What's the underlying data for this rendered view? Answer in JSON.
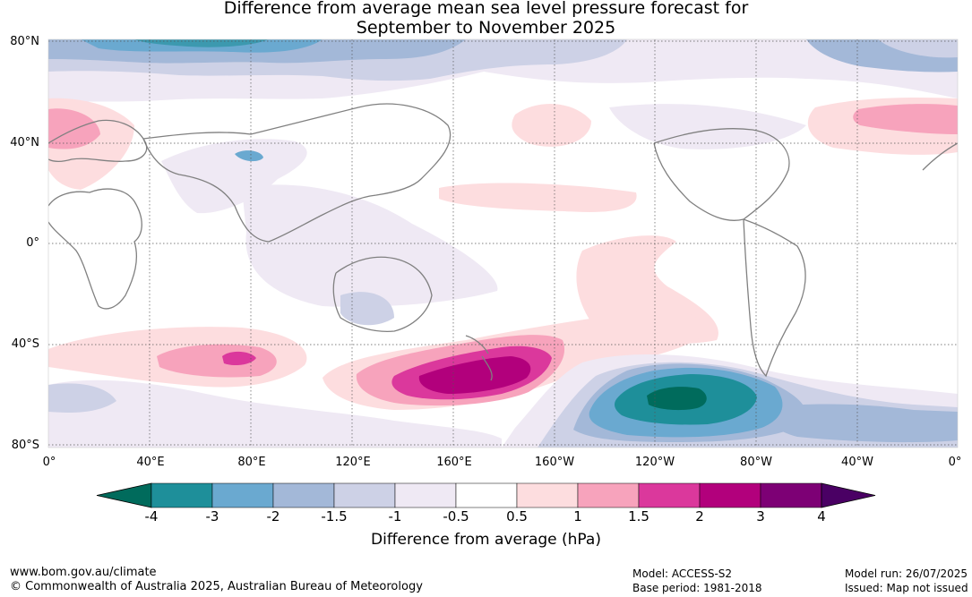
{
  "title": {
    "line1": "Difference from average mean sea level pressure forecast for",
    "line2": "September to November 2025"
  },
  "map": {
    "lat_labels": [
      "80°N",
      "40°N",
      "0°",
      "40°S",
      "80°S"
    ],
    "lon_labels": [
      "0°",
      "40°E",
      "80°E",
      "120°E",
      "160°E",
      "160°W",
      "120°W",
      "80°W",
      "40°W",
      "0°"
    ]
  },
  "colorbar": {
    "ticks": [
      "-4",
      "-3",
      "-2",
      "-1.5",
      "-1",
      "-0.5",
      "0.5",
      "1",
      "1.5",
      "2",
      "3",
      "4"
    ],
    "colors": [
      "#006b5c",
      "#1e8f9a",
      "#6aa9d0",
      "#a3b8d8",
      "#cdd1e6",
      "#efe9f4",
      "#ffffff",
      "#fddddf",
      "#f7a3bc",
      "#db389c",
      "#b2007c",
      "#7d0075",
      "#4a0064"
    ],
    "label": "Difference from average (hPa)"
  },
  "footer": {
    "website": "www.bom.gov.au/climate",
    "copyright": "© Commonwealth of Australia 2025, Australian Bureau of Meteorology",
    "model": "Model: ACCESS-S2",
    "base_period": "Base period: 1981-2018",
    "model_run": "Model run: 26/07/2025",
    "issued": "Issued: Map not issued"
  }
}
